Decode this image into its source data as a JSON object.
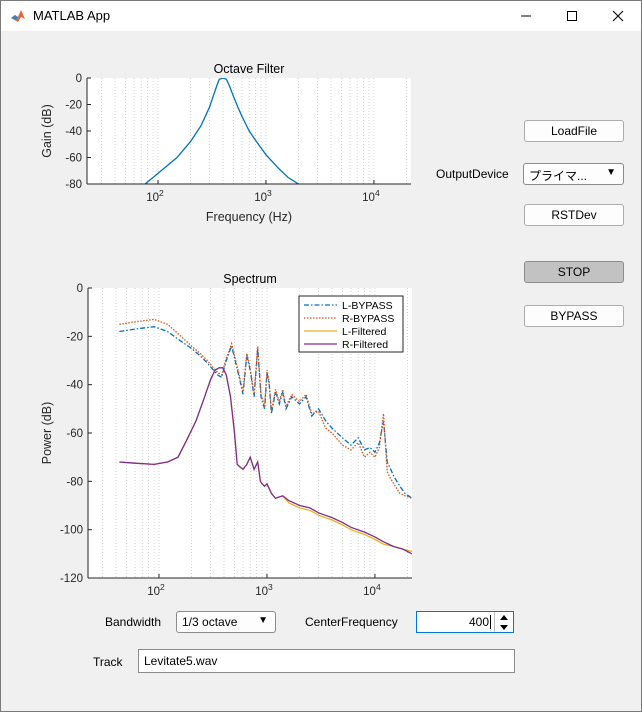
{
  "window": {
    "title": "MATLAB App",
    "minimize_icon": "minimize-icon",
    "maximize_icon": "maximize-icon",
    "close_icon": "close-icon"
  },
  "controls": {
    "load_file": "LoadFile",
    "output_device_label": "OutputDevice",
    "output_device_value": "プライマ...",
    "rst_dev": "RSTDev",
    "stop": "STOP",
    "bypass": "BYPASS",
    "bandwidth_label": "Bandwidth",
    "bandwidth_value": "1/3 octave",
    "center_frequency_label": "CenterFrequency",
    "center_frequency_value": "400",
    "track_label": "Track",
    "track_value": "Levitate5.wav"
  },
  "chart_data": [
    {
      "type": "line",
      "title": "Octave Filter",
      "xlabel": "Frequency (Hz)",
      "ylabel": "Gain (dB)",
      "xscale": "log",
      "xlim": [
        22,
        22050
      ],
      "ylim": [
        -80,
        0
      ],
      "yticks": [
        0,
        -20,
        -40,
        -60,
        -80
      ],
      "xticks": [
        {
          "value": 100,
          "base": "10",
          "exp": "2"
        },
        {
          "value": 1000,
          "base": "10",
          "exp": "3"
        },
        {
          "value": 10000,
          "base": "10",
          "exp": "4"
        }
      ],
      "grid": "x-minor-dotted",
      "series": [
        {
          "color": "#0072bd",
          "x": [
            76,
            100,
            150,
            200,
            250,
            300,
            330,
            350,
            370,
            400,
            430,
            460,
            500,
            550,
            600,
            700,
            800,
            1000,
            1300,
            1600,
            2000
          ],
          "y": [
            -80,
            -72,
            -60,
            -48,
            -36,
            -22,
            -12,
            -6,
            -1,
            0,
            -1,
            -6,
            -14,
            -22,
            -29,
            -40,
            -47,
            -58,
            -68,
            -75,
            -80
          ]
        }
      ]
    },
    {
      "type": "line",
      "title": "Spectrum",
      "xlabel": "Frequency (Hz)",
      "ylabel": "Power (dB)",
      "xscale": "log",
      "xlim": [
        22,
        22050
      ],
      "ylim": [
        -120,
        0
      ],
      "yticks": [
        0,
        -20,
        -40,
        -60,
        -80,
        -100,
        -120
      ],
      "xticks": [
        {
          "value": 100,
          "base": "10",
          "exp": "2"
        },
        {
          "value": 1000,
          "base": "10",
          "exp": "3"
        },
        {
          "value": 10000,
          "base": "10",
          "exp": "4"
        }
      ],
      "legend": "top-right",
      "grid": "x-minor-dotted",
      "series": [
        {
          "name": "L-BYPASS",
          "color": "#0072bd",
          "dash": "5 2 1.5 2",
          "x": [
            43,
            60,
            90,
            120,
            160,
            200,
            240,
            280,
            320,
            350,
            380,
            420,
            470,
            520,
            560,
            600,
            650,
            700,
            760,
            820,
            880,
            950,
            1000,
            1050,
            1100,
            1200,
            1300,
            1400,
            1500,
            1700,
            2000,
            2300,
            2600,
            3000,
            3500,
            4000,
            5000,
            6000,
            7000,
            8000,
            9000,
            10000,
            11000,
            12000,
            13000,
            14000,
            15000,
            17000,
            19000,
            22050
          ],
          "y": [
            -18,
            -17,
            -16,
            -18,
            -22,
            -25,
            -28,
            -31,
            -34,
            -36,
            -37,
            -30,
            -24,
            -32,
            -38,
            -44,
            -28,
            -34,
            -45,
            -25,
            -45,
            -50,
            -35,
            -40,
            -52,
            -43,
            -48,
            -43,
            -50,
            -45,
            -48,
            -45,
            -53,
            -50,
            -55,
            -58,
            -62,
            -65,
            -62,
            -67,
            -66,
            -68,
            -64,
            -55,
            -72,
            -75,
            -78,
            -82,
            -85,
            -87
          ]
        },
        {
          "name": "R-BYPASS",
          "color": "#d95319",
          "dash": "1.5 1.5",
          "x": [
            43,
            60,
            90,
            120,
            160,
            200,
            240,
            280,
            320,
            350,
            380,
            420,
            470,
            520,
            560,
            600,
            650,
            700,
            760,
            820,
            880,
            950,
            1000,
            1050,
            1100,
            1200,
            1300,
            1400,
            1500,
            1700,
            2000,
            2300,
            2600,
            3000,
            3500,
            4000,
            5000,
            6000,
            7000,
            8000,
            9000,
            10000,
            11000,
            12000,
            13000,
            14000,
            15000,
            17000,
            19000,
            22050
          ],
          "y": [
            -15,
            -14,
            -13,
            -15,
            -20,
            -24,
            -27,
            -30,
            -33,
            -35,
            -36,
            -29,
            -23,
            -31,
            -37,
            -43,
            -27,
            -33,
            -44,
            -24,
            -44,
            -49,
            -34,
            -39,
            -51,
            -42,
            -47,
            -42,
            -49,
            -44,
            -47,
            -44,
            -52,
            -51,
            -58,
            -60,
            -65,
            -67,
            -64,
            -70,
            -68,
            -70,
            -66,
            -52,
            -76,
            -79,
            -81,
            -85,
            -86,
            -87
          ]
        },
        {
          "name": "L-Filtered",
          "color": "#edb120",
          "dash": "",
          "x": [
            43,
            60,
            90,
            120,
            150,
            180,
            220,
            260,
            300,
            330,
            360,
            390,
            420,
            460,
            500,
            530,
            560,
            600,
            650,
            700,
            760,
            820,
            870,
            900,
            950,
            1000,
            1100,
            1200,
            1400,
            1600,
            1800,
            2000,
            2500,
            3000,
            4000,
            5000,
            6000,
            8000,
            10000,
            12000,
            15000,
            18000,
            22050
          ],
          "y": [
            -72,
            -72.5,
            -73,
            -72,
            -70,
            -63,
            -55,
            -46,
            -38,
            -34,
            -33,
            -33,
            -36,
            -45,
            -60,
            -73,
            -74,
            -75,
            -73,
            -70,
            -75,
            -72,
            -80,
            -81,
            -82,
            -81,
            -85,
            -87,
            -86,
            -89,
            -90,
            -91,
            -92,
            -94,
            -96,
            -98,
            -100,
            -102,
            -104,
            -106,
            -107,
            -108,
            -109
          ]
        },
        {
          "name": "R-Filtered",
          "color": "#7e2f8e",
          "dash": "",
          "x": [
            43,
            60,
            90,
            120,
            150,
            180,
            220,
            260,
            300,
            330,
            360,
            390,
            420,
            460,
            500,
            530,
            560,
            600,
            650,
            700,
            760,
            820,
            870,
            900,
            950,
            1000,
            1100,
            1200,
            1400,
            1600,
            1800,
            2000,
            2500,
            3000,
            4000,
            5000,
            6000,
            8000,
            10000,
            12000,
            15000,
            18000,
            22050
          ],
          "y": [
            -72,
            -72.5,
            -73,
            -72,
            -70,
            -63,
            -55,
            -46,
            -38,
            -34,
            -33,
            -33,
            -36,
            -45,
            -60,
            -73,
            -74,
            -75,
            -73,
            -70,
            -75,
            -72,
            -80,
            -81,
            -82,
            -81,
            -85,
            -87,
            -86,
            -88,
            -89,
            -90,
            -91,
            -93,
            -95,
            -97,
            -99,
            -101,
            -103,
            -105,
            -107,
            -108,
            -110
          ]
        }
      ]
    }
  ]
}
